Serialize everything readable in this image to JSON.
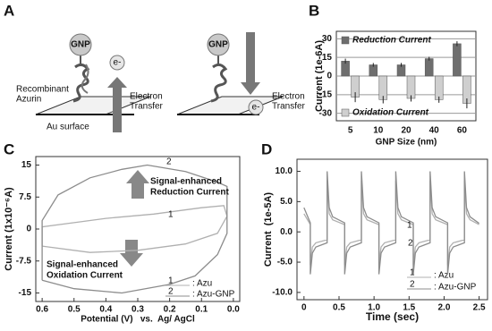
{
  "diagram": {
    "panel": "A",
    "gnp_left": "GNP",
    "gnp_right": "GNP",
    "electron_left": "e-",
    "electron_right": "e-",
    "protein_line1": "Recombinant",
    "protein_line2": "Azurin",
    "transfer_left_line1": "Electron",
    "transfer_left_line2": "Transfer",
    "transfer_right_line1": "Electron",
    "transfer_right_line2": "Transfer",
    "surface": "Au surface"
  },
  "chart_data": [
    {
      "type": "bar",
      "panel": "B",
      "y_label": "Current (1e-6A)",
      "x_label": "GNP Size (nm)",
      "categories": [
        "5",
        "10",
        "20",
        "40",
        "60"
      ],
      "series": [
        {
          "name": "Reduction Current",
          "color": "#6e6e6e",
          "values": [
            12,
            9,
            9,
            14,
            26
          ],
          "errors": [
            2,
            1.5,
            1.5,
            1.5,
            2
          ]
        },
        {
          "name": "Oxidation Current",
          "color": "#cfcfcf",
          "values": [
            -17,
            -19,
            -18,
            -19,
            -22
          ],
          "errors": [
            4,
            3,
            2.5,
            2.5,
            4
          ]
        }
      ],
      "ylim": [
        -36,
        36
      ],
      "yticks": [
        30,
        15,
        0,
        -15,
        -30
      ],
      "grid": true
    },
    {
      "type": "line",
      "panel": "C",
      "y_label": "Current (1x10⁻⁶A)",
      "x_label": "Potential (V)   vs.  Ag/ AgCl",
      "xlim": [
        0.62,
        -0.02
      ],
      "xticks": [
        0.6,
        0.5,
        0.4,
        0.3,
        0.2,
        0.1,
        {
          "value": 0,
          "label": "0.0"
        }
      ],
      "ylim": [
        -17,
        17
      ],
      "yticks": [
        15,
        7.5,
        0,
        -7.5,
        -15
      ],
      "grid": false,
      "annotations": [
        "Signal-enhanced",
        "Reduction Current",
        "Signal-enhanced",
        "Oxidation Current"
      ],
      "series": [
        {
          "name": ": Azu",
          "label": "1",
          "color": "#b0b0b0",
          "x": [
            0.6,
            0.6,
            0.5,
            0.4,
            0.25,
            0.1,
            0.03,
            0.02,
            0.05,
            0.15,
            0.3,
            0.45,
            0.6
          ],
          "values": [
            -4,
            0.5,
            1.5,
            2.5,
            3.5,
            5,
            5.5,
            3,
            -1,
            -3.5,
            -5,
            -5.5,
            -4
          ]
        },
        {
          "name": ": Azu-GNP",
          "label": "2",
          "color": "#8c8c8c",
          "x": [
            0.6,
            0.6,
            0.55,
            0.45,
            0.35,
            0.27,
            0.15,
            0.05,
            0.02,
            0.02,
            0.05,
            0.12,
            0.2,
            0.35,
            0.5,
            0.6
          ],
          "values": [
            -12,
            2,
            8,
            12,
            14,
            15,
            13.5,
            11,
            10,
            -1,
            -6,
            -11,
            -13,
            -15,
            -14,
            -12
          ]
        }
      ]
    },
    {
      "type": "line",
      "panel": "D",
      "y_label": "Current  (1e-5A)",
      "x_label": "Time (sec)",
      "xlim": [
        -0.1,
        2.62
      ],
      "xticks": [
        0,
        0.5,
        {
          "value": 1,
          "label": "1.0"
        },
        1.5,
        {
          "value": 2,
          "label": "2.0"
        },
        2.5
      ],
      "ylim": [
        -11.2,
        12
      ],
      "yticks": [
        {
          "value": 10,
          "label": "10.0"
        },
        {
          "value": 5,
          "label": "5.0"
        },
        {
          "value": 0,
          "label": "0.0"
        },
        {
          "value": -5,
          "label": "-5.0"
        },
        {
          "value": -10,
          "label": "-10.0"
        }
      ],
      "grid": false,
      "x": [
        0,
        0.09,
        0.09,
        0.12,
        0.17,
        0.33,
        0.33,
        0.36,
        0.41,
        0.58,
        0.58,
        0.61,
        0.66,
        0.82,
        0.82,
        0.85,
        0.9,
        1.07,
        1.07,
        1.1,
        1.15,
        1.31,
        1.31,
        1.34,
        1.39,
        1.56,
        1.56,
        1.59,
        1.64,
        1.8,
        1.8,
        1.83,
        1.88,
        2.05,
        2.05,
        2.08,
        2.13,
        2.29,
        2.29,
        2.32,
        2.37,
        2.5
      ],
      "series": [
        {
          "name": ": Azu",
          "label": "1",
          "color": "#b0b0b0",
          "values": [
            3,
            1.2,
            -5.5,
            -2.5,
            -1.8,
            -1.3,
            8.5,
            3,
            2,
            1.2,
            -5.5,
            -2.5,
            -1.8,
            -1.3,
            8.5,
            3,
            2,
            1.2,
            -5.5,
            -2.5,
            -1.8,
            -1.3,
            8.5,
            3,
            2,
            1.2,
            -5.5,
            -2.5,
            -1.8,
            -1.3,
            8.5,
            3,
            2,
            1.2,
            -5.5,
            -2.5,
            -1.8,
            -1.3,
            8.5,
            3,
            2,
            1.2
          ]
        },
        {
          "name": ": Azu-GNP",
          "label": "2",
          "color": "#8c8c8c",
          "values": [
            4,
            1.5,
            -7,
            -3.5,
            -2.5,
            -1.8,
            10,
            4,
            2.5,
            1.5,
            -7,
            -3.5,
            -2.5,
            -1.8,
            10,
            4,
            2.5,
            1.5,
            -7,
            -3.5,
            -2.5,
            -1.8,
            10,
            4,
            2.5,
            1.5,
            -7,
            -3.5,
            -2.5,
            -1.8,
            10,
            4,
            2.5,
            1.5,
            -7,
            -3.5,
            -2.5,
            -1.8,
            10,
            4,
            2.5,
            1.4
          ]
        }
      ]
    }
  ]
}
